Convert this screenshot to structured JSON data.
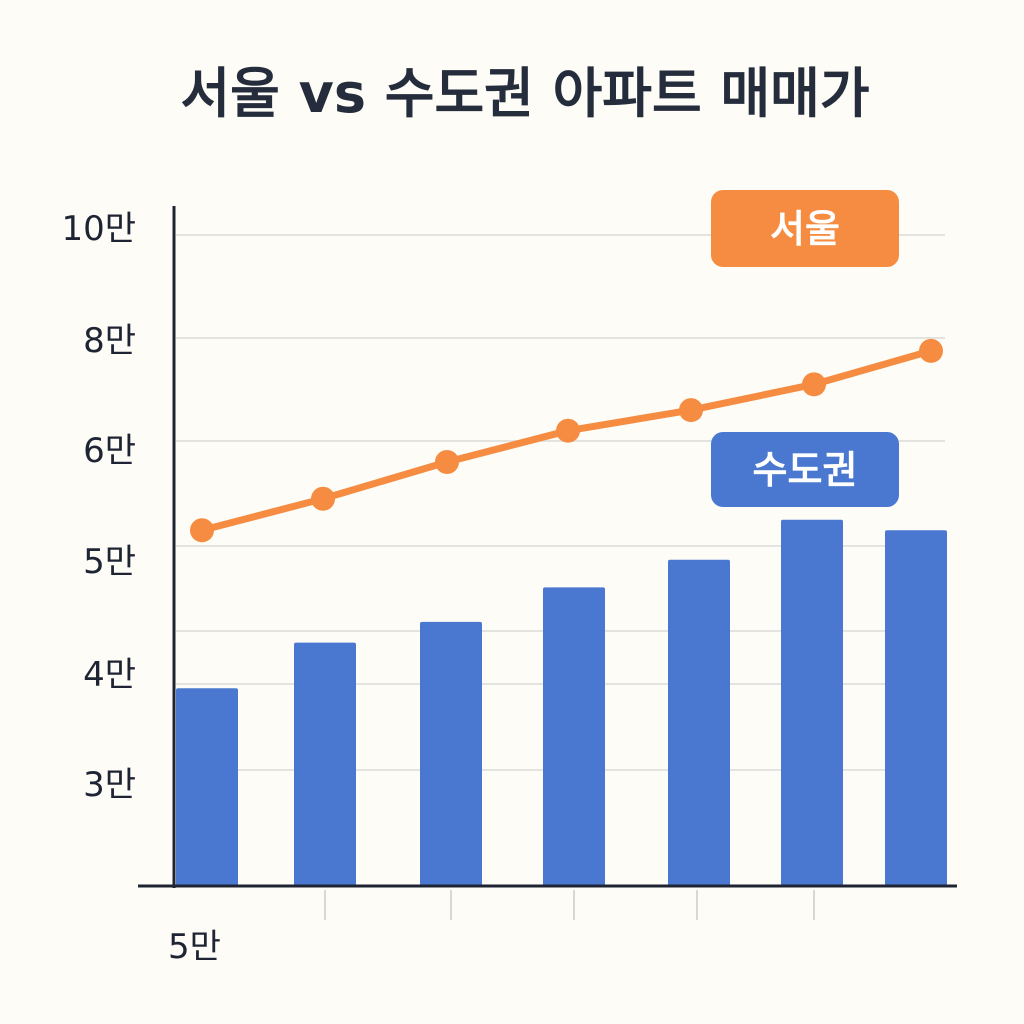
{
  "chart_data": {
    "type": "bar+line",
    "title": "서울 vs 수도권 아파트 매매가",
    "xlabel": "",
    "ylabel": "",
    "x_tick_labels": [
      "5만"
    ],
    "y_tick_labels": [
      "10만",
      "8만",
      "6만",
      "5만",
      "4만",
      "3만"
    ],
    "grid": true,
    "series": [
      {
        "name": "서울",
        "kind": "line",
        "color": "#f58c42",
        "values": [
          5.15,
          5.45,
          5.8,
          6.2,
          6.6,
          7.1,
          7.75
        ]
      },
      {
        "name": "수도권",
        "kind": "bar",
        "color": "#4a78d0",
        "values": [
          3.95,
          4.3,
          4.45,
          4.7,
          4.9,
          5.25,
          5.15
        ]
      }
    ],
    "legend": {
      "placement": "right, next to each series"
    }
  }
}
